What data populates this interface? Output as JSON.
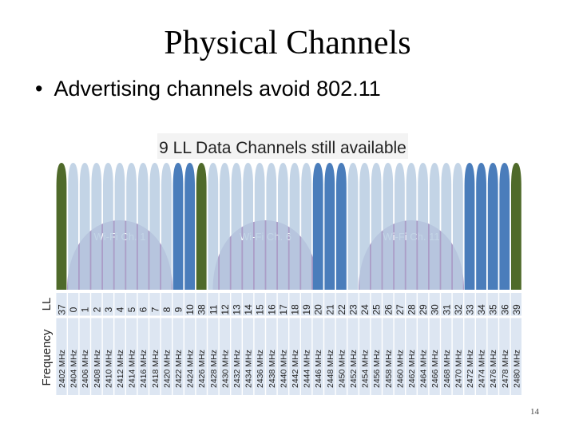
{
  "slide": {
    "title": "Physical Channels",
    "bullet": "Advertising channels avoid 802.11",
    "page_number": "14"
  },
  "figure": {
    "heading": "9 LL Data Channels still available",
    "row_labels": {
      "ll": "LL",
      "frequency": "Frequency"
    },
    "colors": {
      "advertising": "#4f6a2a",
      "available_data": "#4a7dbb",
      "data": "#b8cce2",
      "wifi": "#ab9dc7",
      "label_bg": "#dde6f2"
    },
    "wifi_channels": [
      {
        "label": "Wi-Fi Ch. 1",
        "center_mhz": 2412
      },
      {
        "label": "Wi-Fi Ch. 6",
        "center_mhz": 2437
      },
      {
        "label": "Wi-Fi Ch. 11",
        "center_mhz": 2462
      }
    ],
    "channels": [
      {
        "ll": "37",
        "freq": "2402 MHz",
        "kind": "advertising"
      },
      {
        "ll": "0",
        "freq": "2404 MHz",
        "kind": "data"
      },
      {
        "ll": "1",
        "freq": "2406 MHz",
        "kind": "data"
      },
      {
        "ll": "2",
        "freq": "2408 MHz",
        "kind": "data"
      },
      {
        "ll": "3",
        "freq": "2410 MHz",
        "kind": "data"
      },
      {
        "ll": "4",
        "freq": "2412 MHz",
        "kind": "data"
      },
      {
        "ll": "5",
        "freq": "2414 MHz",
        "kind": "data"
      },
      {
        "ll": "6",
        "freq": "2416 MHz",
        "kind": "data"
      },
      {
        "ll": "7",
        "freq": "2418 MHz",
        "kind": "data"
      },
      {
        "ll": "8",
        "freq": "2420 MHz",
        "kind": "data"
      },
      {
        "ll": "9",
        "freq": "2422 MHz",
        "kind": "available_data"
      },
      {
        "ll": "10",
        "freq": "2424 MHz",
        "kind": "available_data"
      },
      {
        "ll": "38",
        "freq": "2426 MHz",
        "kind": "advertising"
      },
      {
        "ll": "11",
        "freq": "2428 MHz",
        "kind": "data"
      },
      {
        "ll": "12",
        "freq": "2430 MHz",
        "kind": "data"
      },
      {
        "ll": "13",
        "freq": "2432 MHz",
        "kind": "data"
      },
      {
        "ll": "14",
        "freq": "2434 MHz",
        "kind": "data"
      },
      {
        "ll": "15",
        "freq": "2436 MHz",
        "kind": "data"
      },
      {
        "ll": "16",
        "freq": "2438 MHz",
        "kind": "data"
      },
      {
        "ll": "17",
        "freq": "2440 MHz",
        "kind": "data"
      },
      {
        "ll": "18",
        "freq": "2442 MHz",
        "kind": "data"
      },
      {
        "ll": "19",
        "freq": "2444 MHz",
        "kind": "data"
      },
      {
        "ll": "20",
        "freq": "2446 MHz",
        "kind": "available_data"
      },
      {
        "ll": "21",
        "freq": "2448 MHz",
        "kind": "available_data"
      },
      {
        "ll": "22",
        "freq": "2450 MHz",
        "kind": "available_data"
      },
      {
        "ll": "23",
        "freq": "2452 MHz",
        "kind": "data"
      },
      {
        "ll": "24",
        "freq": "2454 MHz",
        "kind": "data"
      },
      {
        "ll": "25",
        "freq": "2456 MHz",
        "kind": "data"
      },
      {
        "ll": "26",
        "freq": "2458 MHz",
        "kind": "data"
      },
      {
        "ll": "27",
        "freq": "2460 MHz",
        "kind": "data"
      },
      {
        "ll": "28",
        "freq": "2462 MHz",
        "kind": "data"
      },
      {
        "ll": "29",
        "freq": "2464 MHz",
        "kind": "data"
      },
      {
        "ll": "30",
        "freq": "2466 MHz",
        "kind": "data"
      },
      {
        "ll": "31",
        "freq": "2468 MHz",
        "kind": "data"
      },
      {
        "ll": "32",
        "freq": "2470 MHz",
        "kind": "data"
      },
      {
        "ll": "33",
        "freq": "2472 MHz",
        "kind": "available_data"
      },
      {
        "ll": "34",
        "freq": "2474 MHz",
        "kind": "available_data"
      },
      {
        "ll": "35",
        "freq": "2476 MHz",
        "kind": "available_data"
      },
      {
        "ll": "36",
        "freq": "2478 MHz",
        "kind": "available_data"
      },
      {
        "ll": "39",
        "freq": "2480 MHz",
        "kind": "advertising"
      }
    ]
  }
}
